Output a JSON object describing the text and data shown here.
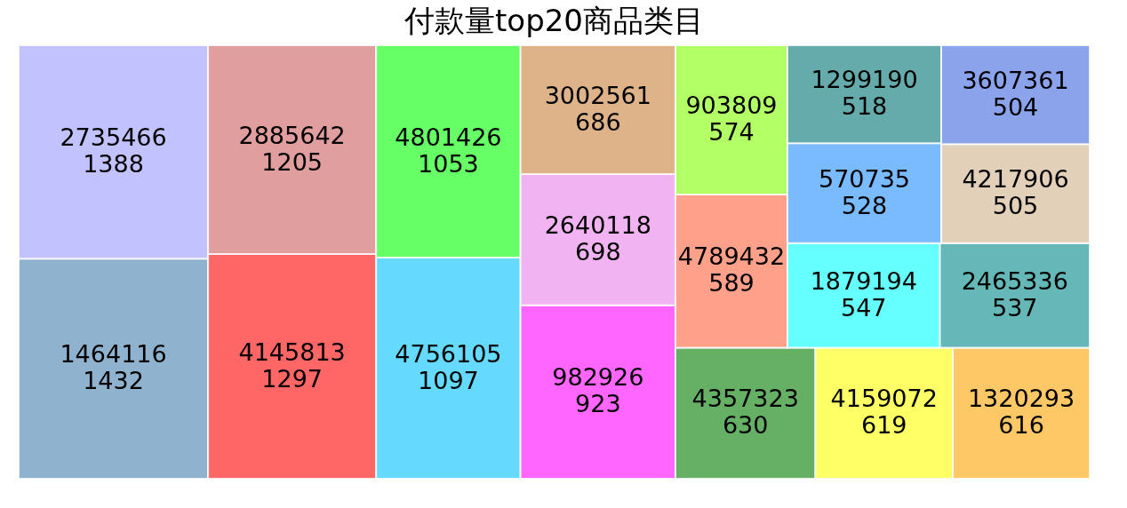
{
  "chart_data": {
    "type": "other",
    "title": "付款量top20商品类目",
    "categories": [
      "1464116",
      "2735466",
      "4145813",
      "2885642",
      "4756105",
      "4801426",
      "982926",
      "2640118",
      "3002561",
      "4357323",
      "4159072",
      "1320293",
      "4789432",
      "903809",
      "1879194",
      "2465336",
      "570735",
      "1299190",
      "4217906",
      "3607361"
    ],
    "values": [
      1432,
      1388,
      1297,
      1205,
      1097,
      1053,
      923,
      698,
      686,
      630,
      619,
      616,
      589,
      574,
      547,
      537,
      528,
      518,
      505,
      504
    ],
    "colors": [
      "#8fb2cf",
      "#c2c2ff",
      "#ff6666",
      "#e09e9e",
      "#66d9ff",
      "#66ff66",
      "#ff66ff",
      "#f2b3f2",
      "#deb38a",
      "#66b066",
      "#ffff66",
      "#ffc866",
      "#ffa08a",
      "#b3ff66",
      "#66ffff",
      "#66b8b8",
      "#7abaff",
      "#66abab",
      "#e3d0b8",
      "#8aa3eb"
    ],
    "data_labels": true
  }
}
